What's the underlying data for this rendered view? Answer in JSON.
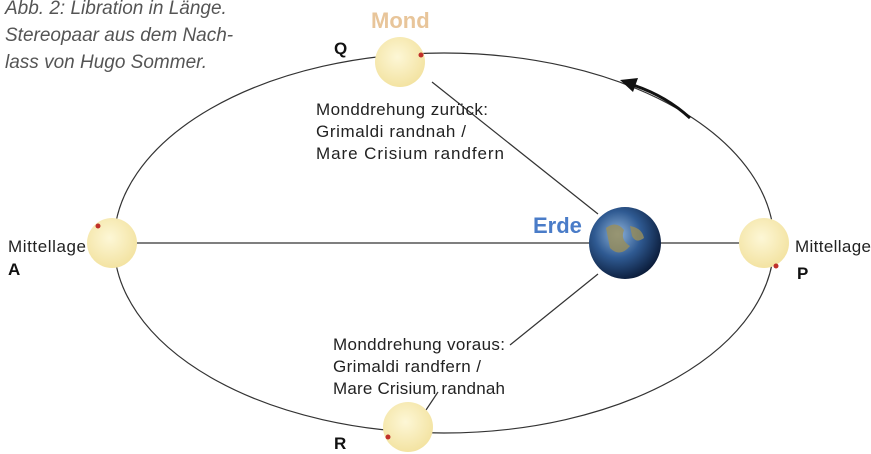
{
  "caption": {
    "lines": [
      "Abb. 2: Libration in Länge.",
      "Stereopaar aus dem Nach-",
      "lass von Hugo Sommer."
    ]
  },
  "labels": {
    "moon": "Mond",
    "earth": "Erde",
    "q": "Q",
    "r": "R",
    "a": "A",
    "p": "P",
    "left_position": "Mittellage",
    "right_position": "Mittellage"
  },
  "annotations": {
    "upper": [
      "Monddrehung zurück:",
      "Grimaldi randnah /",
      "Mare Crisium randfern"
    ],
    "lower": [
      "Monddrehung voraus:",
      "Grimaldi randfern /",
      "Mare Crisium randnah"
    ]
  }
}
